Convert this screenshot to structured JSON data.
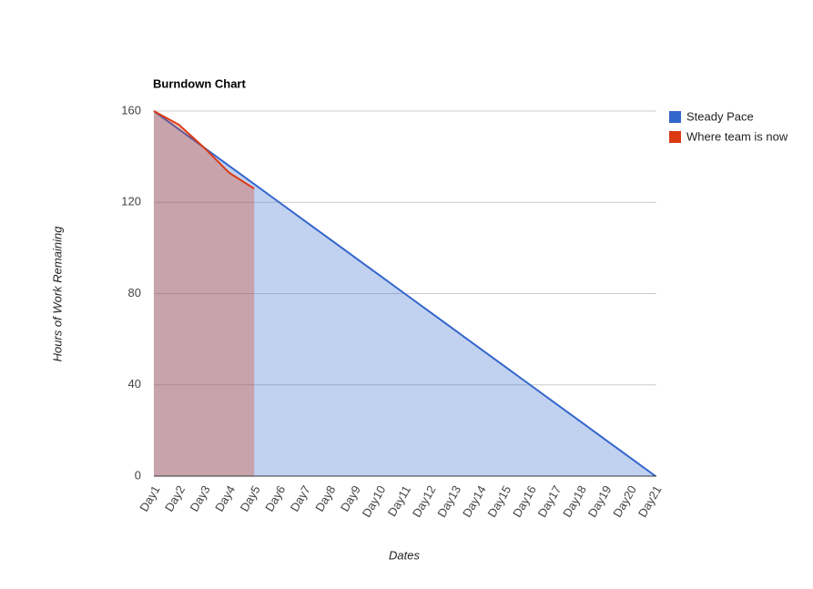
{
  "chart_data": {
    "type": "area",
    "title": "Burndown Chart",
    "x_label": "Dates",
    "y_label": "Hours of Work Remaining",
    "categories": [
      "Day1",
      "Day2",
      "Day3",
      "Day4",
      "Day5",
      "Day6",
      "Day7",
      "Day8",
      "Day9",
      "Day10",
      "Day11",
      "Day12",
      "Day13",
      "Day14",
      "Day15",
      "Day16",
      "Day17",
      "Day18",
      "Day19",
      "Day20",
      "Day21"
    ],
    "series": [
      {
        "name": "Steady Pace",
        "color": "#3366cc",
        "values": [
          160,
          152,
          144,
          136,
          128,
          120,
          112,
          104,
          96,
          88,
          80,
          72,
          64,
          56,
          48,
          40,
          32,
          24,
          16,
          8,
          0
        ]
      },
      {
        "name": "Where team is now",
        "color": "#dc3912",
        "values": [
          160,
          154,
          144,
          133,
          126,
          null,
          null,
          null,
          null,
          null,
          null,
          null,
          null,
          null,
          null,
          null,
          null,
          null,
          null,
          null,
          null
        ]
      }
    ],
    "ylim": [
      0,
      160
    ],
    "yticks": [
      0,
      40,
      80,
      120,
      160
    ],
    "grid": true,
    "legend": "right"
  }
}
